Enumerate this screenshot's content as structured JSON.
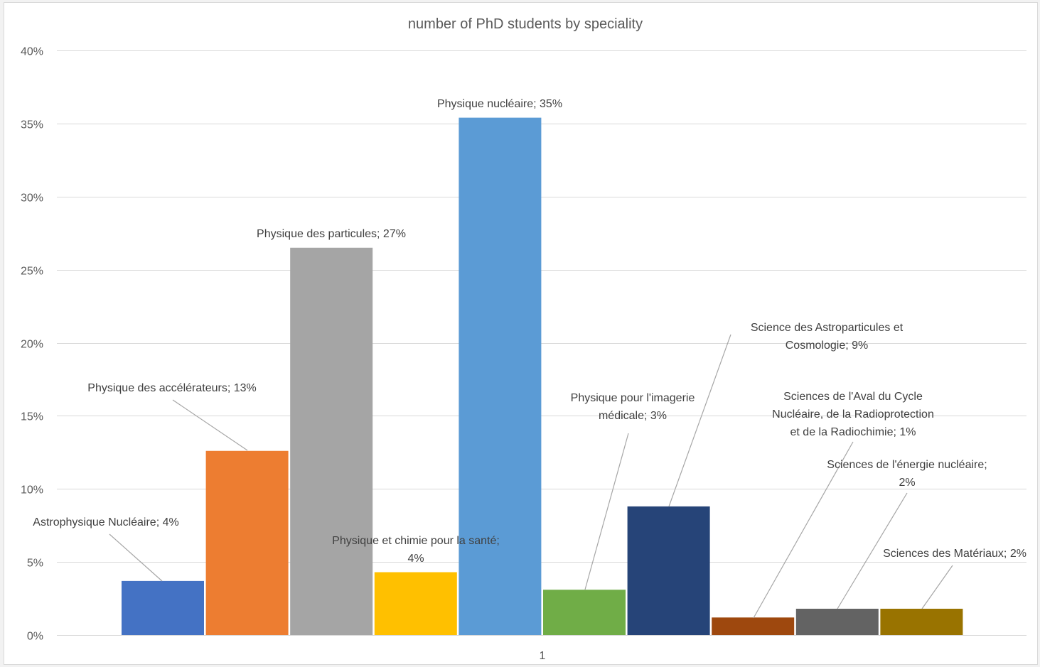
{
  "chart_data": {
    "type": "bar",
    "title": "number of PhD students by speciality",
    "xlabel": "",
    "ylabel": "",
    "ylim": [
      0,
      0.4
    ],
    "yticks": [
      0,
      0.05,
      0.1,
      0.15,
      0.2,
      0.25,
      0.3,
      0.35,
      0.4
    ],
    "ytick_labels": [
      "0%",
      "5%",
      "10%",
      "15%",
      "20%",
      "25%",
      "30%",
      "35%",
      "40%"
    ],
    "categories": [
      "1"
    ],
    "grid": true,
    "legend": "none",
    "series": [
      {
        "name": "Astrophysique Nucléaire",
        "value": 0.037,
        "label": [
          "Astrophysique Nucléaire; 4%"
        ],
        "color": "#4472c4"
      },
      {
        "name": "Physique des accélérateurs",
        "value": 0.126,
        "label": [
          "Physique des accélérateurs; 13%"
        ],
        "color": "#ed7d31"
      },
      {
        "name": "Physique des particules",
        "value": 0.265,
        "label": [
          "Physique des particules; 27%"
        ],
        "color": "#a5a5a5"
      },
      {
        "name": "Physique et chimie pour la santé",
        "value": 0.043,
        "label": [
          "Physique et chimie pour la santé;",
          "4%"
        ],
        "color": "#ffc000"
      },
      {
        "name": "Physique nucléaire",
        "value": 0.354,
        "label": [
          "Physique nucléaire; 35%"
        ],
        "color": "#5b9bd5"
      },
      {
        "name": "Physique pour l'imagerie médicale",
        "value": 0.031,
        "label": [
          "Physique pour l'imagerie",
          "médicale; 3%"
        ],
        "color": "#70ad47"
      },
      {
        "name": "Science des Astroparticules et Cosmologie",
        "value": 0.088,
        "label": [
          "Science des Astroparticules et",
          "Cosmologie; 9%"
        ],
        "color": "#264478"
      },
      {
        "name": "Sciences de l'Aval du Cycle Nucléaire, de la Radioprotection et de la Radiochimie",
        "value": 0.012,
        "label": [
          "Sciences de l'Aval du Cycle",
          "Nucléaire, de la Radioprotection",
          "et de la Radiochimie; 1%"
        ],
        "color": "#9e480e"
      },
      {
        "name": "Sciences de l'énergie nucléaire",
        "value": 0.018,
        "label": [
          "Sciences de l'énergie nucléaire;",
          "2%"
        ],
        "color": "#636363"
      },
      {
        "name": "Sciences des Matériaux",
        "value": 0.018,
        "label": [
          "Sciences des Matériaux; 2%"
        ],
        "color": "#997300"
      }
    ]
  },
  "colors": {
    "gridline": "#d9d9d9",
    "leader_line": "#a6a6a6"
  }
}
